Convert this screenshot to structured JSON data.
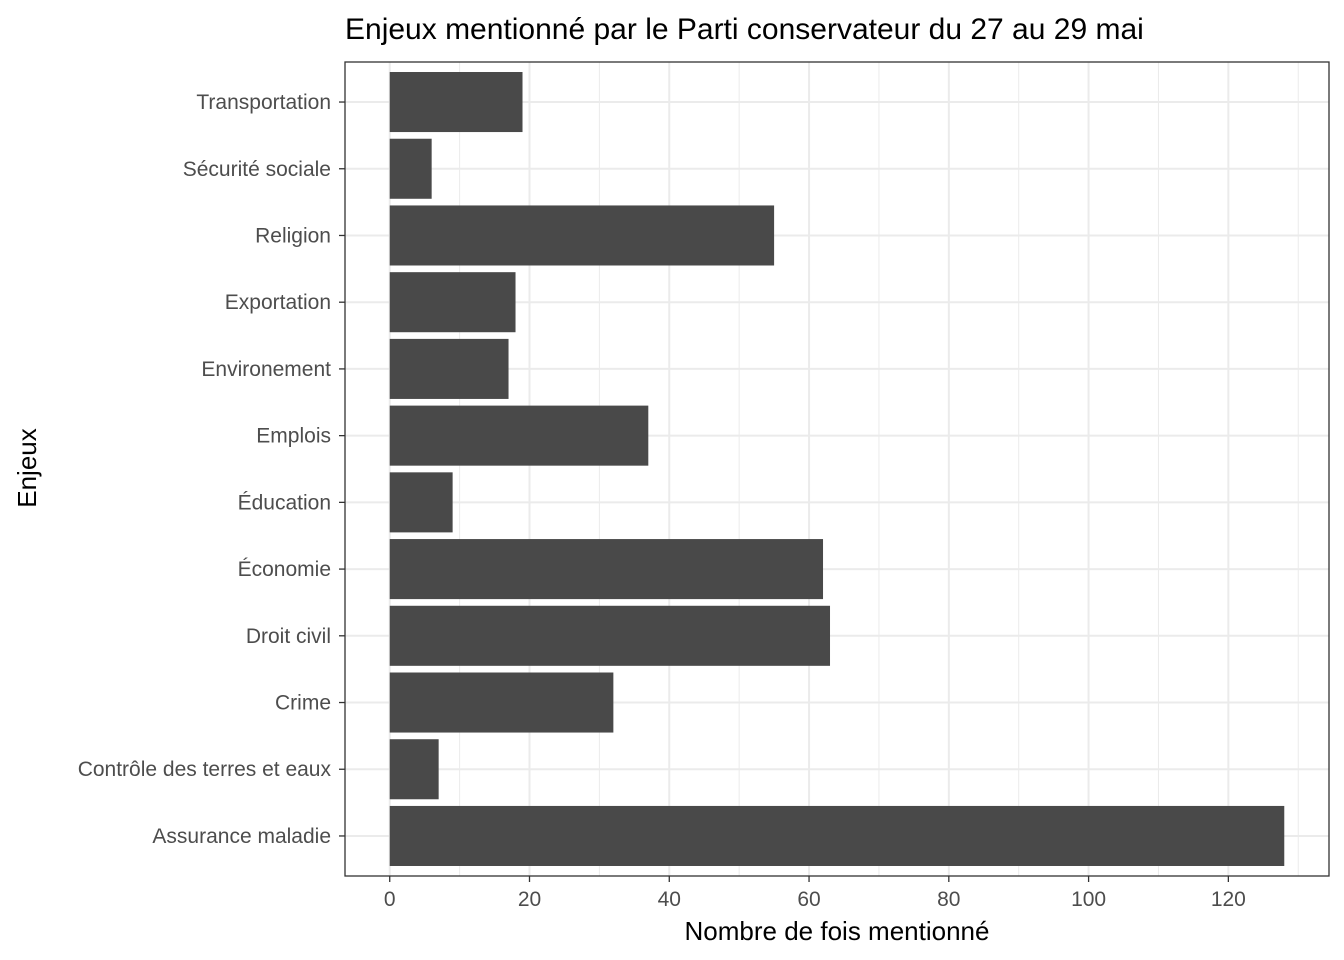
{
  "chart_data": {
    "type": "bar",
    "orientation": "horizontal",
    "title": "Enjeux mentionné par le Parti conservateur du 27 au 29 mai",
    "xlabel": "Nombre de fois mentionné",
    "ylabel": "Enjeux",
    "categories": [
      "Assurance maladie",
      "Contrôle des terres et eaux",
      "Crime",
      "Droit civil",
      "Économie",
      "Éducation",
      "Emplois",
      "Environement",
      "Exportation",
      "Religion",
      "Sécurité sociale",
      "Transportation"
    ],
    "values": [
      128,
      7,
      32,
      63,
      62,
      9,
      37,
      17,
      18,
      55,
      6,
      19
    ],
    "xlim": [
      -6.4,
      134.4
    ],
    "xticks": [
      0,
      20,
      40,
      60,
      80,
      100,
      120
    ],
    "grid": true,
    "bar_color": "#494949",
    "grid_color": "#ebebeb",
    "panel_border_color": "#333333"
  }
}
